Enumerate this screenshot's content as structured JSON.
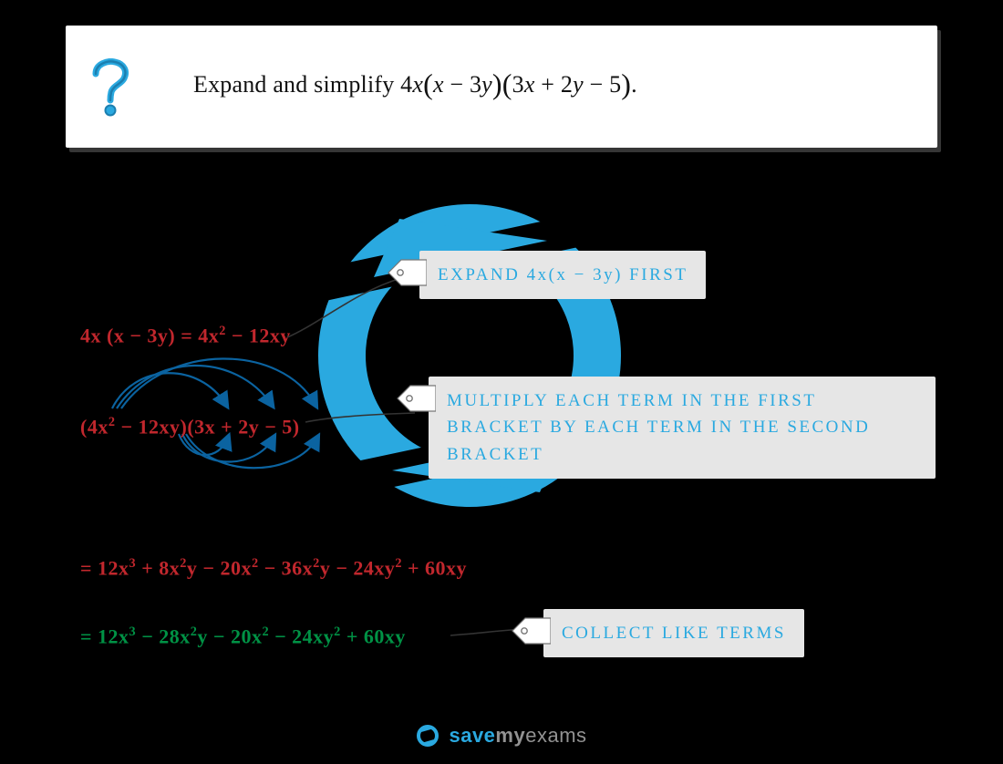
{
  "colors": {
    "background": "#000000",
    "card_bg": "#ffffff",
    "card_shadow": "rgba(120,120,120,0.45)",
    "brand_blue": "#2aa9e0",
    "brand_blue_dark": "#1b7fb0",
    "label_bg": "#e6e6e6",
    "red": "#c1272d",
    "green": "#009245",
    "arrow": "#0b63a0",
    "grey_text": "#929292",
    "q_text": "#111111"
  },
  "question": {
    "prefix": "Expand and simplify ",
    "expr_html": "4<span class='mi'>x</span><span class='paren'>(</span><span class='mi'>x</span> − 3<span class='mi'>y</span><span class='paren'>)</span><span class='paren'>(</span>3<span class='mi'>x</span> + 2<span class='mi'>y</span> − 5<span class='paren'>)</span>.",
    "fontsize": 26
  },
  "steps": {
    "s1_html": "4x (x − 3y) = 4x<span class='sup'>2</span> − 12xy",
    "s2_html": "(4x<span class='sup'>2</span> − 12xy)(3x + 2y − 5)",
    "s3_html": "= 12x<span class='sup'>3</span> + 8x<span class='sup'>2</span>y − 20x<span class='sup'>2</span> − 36x<span class='sup'>2</span>y − 24xy<span class='sup'>2</span> + 60xy",
    "s4_html": "= 12x<span class='sup'>3</span> − 28x<span class='sup'>2</span>y − 20x<span class='sup'>2</span> − 24xy<span class='sup'>2</span> + 60xy",
    "fontsize": 22
  },
  "labels": {
    "l1": "EXPAND  4x(x − 3y)  FIRST",
    "l2": "MULTIPLY  EACH  TERM  IN  THE  FIRST BRACKET  BY  EACH  TERM  IN  THE SECOND  BRACKET",
    "l3": "COLLECT  LIKE  TERMS",
    "fontsize": 19
  },
  "logo": {
    "t1": "save",
    "t2": "my",
    "t3": "exams",
    "t1_color": "#2aa9e0",
    "t2_color": "#929292",
    "t3_color": "#929292",
    "fontsize": 22
  }
}
